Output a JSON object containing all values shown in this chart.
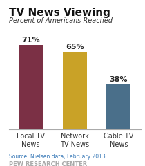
{
  "title": "TV News Viewing",
  "subtitle": "Percent of Americans Reached",
  "categories": [
    "Local TV\nNews",
    "Network\nTV News",
    "Cable TV\nNews"
  ],
  "values": [
    71,
    65,
    38
  ],
  "bar_colors": [
    "#7b3045",
    "#c9a227",
    "#4a6f8a"
  ],
  "bar_labels": [
    "71%",
    "65%",
    "38%"
  ],
  "source": "Source: Nielsen data, February 2013",
  "footer": "PEW RESEARCH CENTER",
  "ylim": [
    0,
    85
  ],
  "background_color": "#ffffff",
  "title_fontsize": 11,
  "subtitle_fontsize": 7,
  "label_fontsize": 8,
  "tick_fontsize": 7,
  "source_fontsize": 5.5,
  "footer_fontsize": 6
}
